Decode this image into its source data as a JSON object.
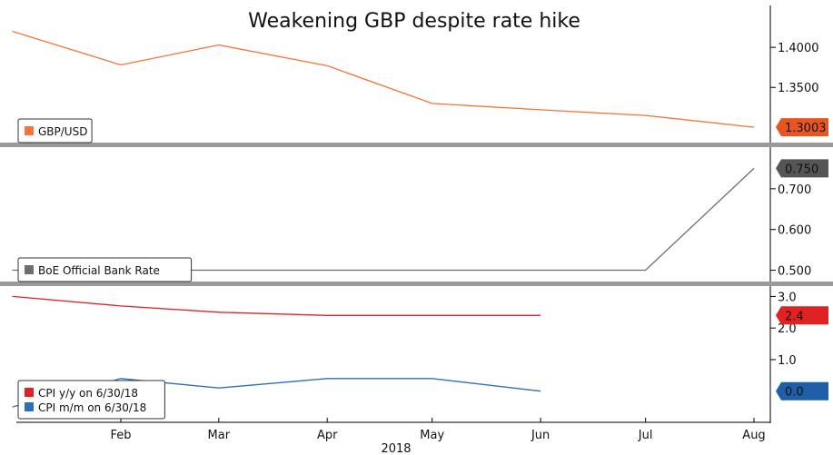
{
  "title": "Weakening GBP despite rate hike",
  "chart_data": [
    {
      "type": "line",
      "panel": "top",
      "series": [
        {
          "name": "GBP/USD",
          "color": "#f4743b",
          "x": [
            "2018-01-01",
            "2018-02-01",
            "2018-03-01",
            "2018-04-01",
            "2018-05-01",
            "2018-06-01",
            "2018-07-01",
            "2018-08-01"
          ],
          "values": [
            1.42,
            1.378,
            1.403,
            1.377,
            1.33,
            1.322,
            1.315,
            1.3003
          ]
        }
      ],
      "y_ticks": [
        "1.4000",
        "1.3500"
      ],
      "ylim": [
        1.28,
        1.45
      ],
      "last_value_badge": {
        "text": "1.3003",
        "color": "#e8561f"
      },
      "legend": "bottom-left"
    },
    {
      "type": "line",
      "panel": "middle",
      "series": [
        {
          "name": "BoE Official Bank Rate",
          "color": "#6e6e6e",
          "x": [
            "2018-01-01",
            "2018-02-01",
            "2018-03-01",
            "2018-04-01",
            "2018-05-01",
            "2018-06-01",
            "2018-07-01",
            "2018-08-01"
          ],
          "values": [
            0.5,
            0.5,
            0.5,
            0.5,
            0.5,
            0.5,
            0.5,
            0.75
          ]
        }
      ],
      "y_ticks": [
        "0.700",
        "0.600",
        "0.500"
      ],
      "ylim": [
        0.47,
        0.8
      ],
      "last_value_badge": {
        "text": "0.750",
        "color": "#555555"
      },
      "legend": "bottom-left"
    },
    {
      "type": "line",
      "panel": "bottom",
      "series": [
        {
          "name": "CPI y/y on 6/30/18",
          "color": "#e22222",
          "x": [
            "2018-01-01",
            "2018-02-01",
            "2018-03-01",
            "2018-04-01",
            "2018-05-01",
            "2018-06-01"
          ],
          "values": [
            3.0,
            2.7,
            2.5,
            2.4,
            2.4,
            2.4
          ]
        },
        {
          "name": "CPI m/m on 6/30/18",
          "color": "#2f6fb5",
          "x": [
            "2018-01-01",
            "2018-02-01",
            "2018-03-01",
            "2018-04-01",
            "2018-05-01",
            "2018-06-01"
          ],
          "values": [
            -0.5,
            0.4,
            0.1,
            0.4,
            0.4,
            0.0
          ]
        }
      ],
      "y_ticks": [
        "3.0",
        "2.0",
        "1.0"
      ],
      "ylim": [
        -0.9,
        3.3
      ],
      "last_value_badges": [
        {
          "text": "2.4",
          "color": "#e22222"
        },
        {
          "text": "0.0",
          "color": "#1f5fa8"
        }
      ],
      "legend": "bottom-left"
    }
  ],
  "x_axis": {
    "tick_labels": [
      "Feb",
      "Mar",
      "Apr",
      "May",
      "Jun",
      "Jul",
      "Aug"
    ],
    "tick_dates": [
      "2018-02-01",
      "2018-03-01",
      "2018-04-01",
      "2018-05-01",
      "2018-06-01",
      "2018-07-01",
      "2018-08-01"
    ],
    "year_label": "2018",
    "range": [
      "2018-01-01",
      "2018-08-01"
    ]
  }
}
